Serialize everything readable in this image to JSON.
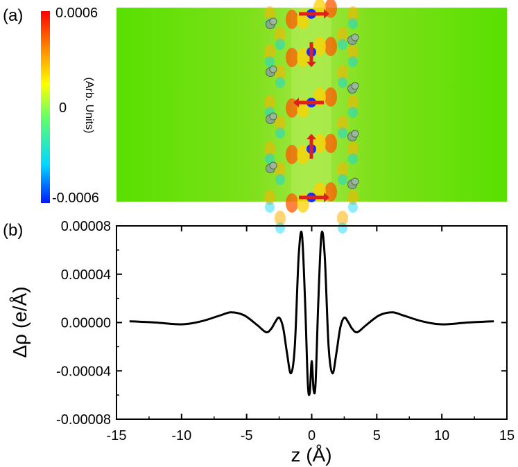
{
  "panel_a": {
    "label": "(a)",
    "colorbar": {
      "max_label": "0.0006",
      "mid_label": "0",
      "min_label": "-0.0006",
      "title": "(Arb. Units)",
      "colors": [
        "#0019ff",
        "#00d8ff",
        "#66ff66",
        "#ffff00",
        "#ff8000",
        "#ff0000"
      ]
    },
    "map_background": "#66e000",
    "arrow_color": "#e0201a"
  },
  "chart_data": {
    "type": "line",
    "panel_label": "(b)",
    "title": "",
    "xlabel": "z (Å)",
    "ylabel": "Δρ (e/Å)",
    "xlim": [
      -15,
      15
    ],
    "ylim": [
      -8e-05,
      8e-05
    ],
    "xticks": [
      -15,
      -10,
      -5,
      0,
      5,
      10,
      15
    ],
    "xtick_labels": [
      "-15",
      "-10",
      "-5",
      "0",
      "5",
      "10",
      "15"
    ],
    "yticks": [
      -8e-05,
      -4e-05,
      0.0,
      4e-05,
      8e-05
    ],
    "ytick_labels": [
      "-0.00008",
      "-0.00004",
      "0.00000",
      "0.00004",
      "0.00008"
    ],
    "series": [
      {
        "name": "Δρ",
        "color": "#000000",
        "x": [
          -14.0,
          -12.0,
          -10.0,
          -8.5,
          -7.0,
          -6.2,
          -5.2,
          -4.2,
          -3.5,
          -3.1,
          -2.8,
          -2.5,
          -2.2,
          -1.9,
          -1.6,
          -1.3,
          -1.0,
          -0.75,
          -0.5,
          -0.3,
          -0.15,
          0.0,
          0.15,
          0.3,
          0.5,
          0.75,
          1.0,
          1.3,
          1.6,
          1.9,
          2.2,
          2.5,
          2.8,
          3.1,
          3.5,
          4.2,
          5.2,
          6.2,
          7.0,
          8.5,
          10.0,
          12.0,
          14.0
        ],
        "y": [
          1e-06,
          0.0,
          -1.5e-06,
          1e-06,
          6e-06,
          8.5e-06,
          6e-06,
          -2e-06,
          -8e-06,
          -5e-06,
          5e-07,
          4e-06,
          -4e-06,
          -2.5e-05,
          -4.2e-05,
          -2e-05,
          5.5e-05,
          7.3e-05,
          1.5e-05,
          -5e-05,
          -5.8e-05,
          -3.2e-05,
          -5.6e-05,
          -5e-05,
          1.5e-05,
          7.3e-05,
          5.5e-05,
          -2e-05,
          -4.2e-05,
          -2.5e-05,
          -4e-06,
          4e-06,
          5e-07,
          -5e-06,
          -8e-06,
          -2e-06,
          6e-06,
          8.5e-06,
          6e-06,
          1e-06,
          -1.5e-06,
          0.0,
          1e-06
        ]
      }
    ]
  }
}
